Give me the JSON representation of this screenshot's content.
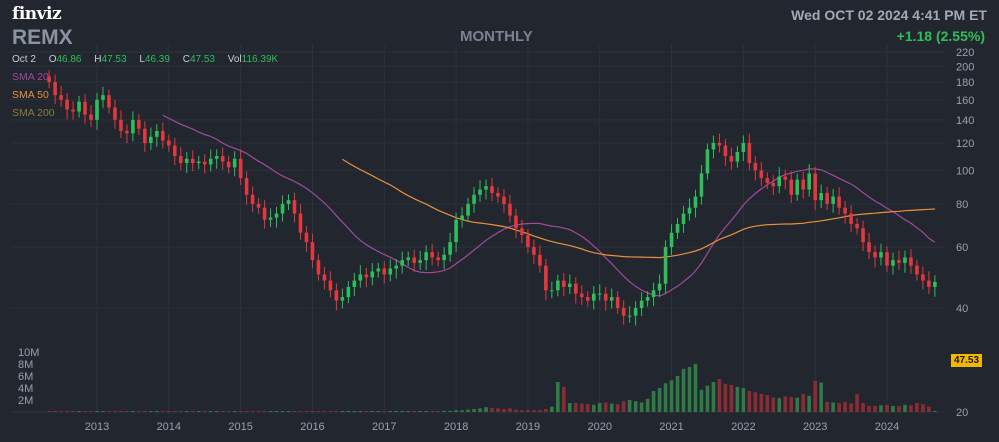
{
  "header": {
    "logo": "finviz",
    "ticker": "REMX",
    "timeframe": "MONTHLY",
    "datetime": "Wed OCT 02 2024 4:41 PM ET",
    "change": "+1.18 (2.55%)",
    "ohlc": {
      "date": "Oct 2",
      "open_label": "O",
      "open": "46.86",
      "high_label": "H",
      "high": "47.53",
      "low_label": "L",
      "low": "46.39",
      "close_label": "C",
      "close": "47.53",
      "vol_label": "Vol",
      "vol": "116.39K"
    },
    "sma": [
      {
        "label": "SMA",
        "period": "20",
        "color": "#a24a9a"
      },
      {
        "label": "SMA",
        "period": "50",
        "color": "#e8913a"
      },
      {
        "label": "SMA",
        "period": "200",
        "color": "#8a7a3a"
      }
    ],
    "last_price_tag": "47.53"
  },
  "colors": {
    "background": "#22262f",
    "up": "#2fbf5a",
    "down": "#e4373e",
    "volume_up": "#2f7a45",
    "volume_down": "#8b2c35"
  },
  "chart_data": {
    "type": "candlestick",
    "price_axis": {
      "ticks": [
        220,
        200,
        180,
        160,
        140,
        120,
        100,
        80,
        60,
        40,
        20
      ],
      "scale": "log"
    },
    "volume_axis": {
      "ticks": [
        "10M",
        "8M",
        "6M",
        "4M",
        "2M"
      ]
    },
    "x_axis": {
      "ticks": [
        "2013",
        "2014",
        "2015",
        "2016",
        "2017",
        "2018",
        "2019",
        "2020",
        "2021",
        "2022",
        "2023",
        "2024"
      ],
      "start": "2012-05",
      "end": "2024-10"
    },
    "closes": [
      180,
      165,
      160,
      150,
      148,
      158,
      145,
      140,
      160,
      165,
      152,
      140,
      130,
      128,
      140,
      132,
      120,
      125,
      130,
      122,
      118,
      110,
      105,
      108,
      105,
      106,
      104,
      108,
      110,
      106,
      102,
      108,
      95,
      85,
      80,
      78,
      72,
      73,
      75,
      80,
      82,
      75,
      66,
      62,
      55,
      50,
      48,
      45,
      42,
      43,
      46,
      48,
      50,
      49,
      51,
      52,
      50,
      52,
      53,
      55,
      56,
      54,
      55,
      58,
      56,
      55,
      57,
      62,
      72,
      74,
      80,
      85,
      88,
      90,
      86,
      84,
      80,
      74,
      68,
      65,
      60,
      57,
      53,
      45,
      45,
      48,
      46,
      47,
      44,
      43,
      42,
      44,
      44,
      42,
      43,
      40,
      38,
      38,
      40,
      42,
      43,
      45,
      47,
      60,
      66,
      70,
      75,
      78,
      84,
      98,
      115,
      120,
      118,
      110,
      106,
      113,
      120,
      105,
      100,
      95,
      92,
      90,
      96,
      94,
      85,
      94,
      88,
      98,
      82,
      86,
      80,
      84,
      78,
      75,
      70,
      68,
      62,
      58,
      56,
      58,
      53,
      55,
      54,
      56,
      53,
      50,
      48,
      46,
      47.53
    ],
    "volumes_m": [
      0.1,
      0.1,
      0.1,
      0.1,
      0.1,
      0.1,
      0.1,
      0.1,
      0.1,
      0.1,
      0.1,
      0.1,
      0.1,
      0.1,
      0.1,
      0.1,
      0.1,
      0.1,
      0.1,
      0.1,
      0.1,
      0.1,
      0.1,
      0.1,
      0.1,
      0.1,
      0.1,
      0.1,
      0.1,
      0.1,
      0.1,
      0.1,
      0.1,
      0.1,
      0.1,
      0.1,
      0.1,
      0.1,
      0.1,
      0.1,
      0.1,
      0.1,
      0.1,
      0.1,
      0.1,
      0.1,
      0.1,
      0.1,
      0.1,
      0.1,
      0.1,
      0.1,
      0.1,
      0.1,
      0.1,
      0.1,
      0.1,
      0.1,
      0.1,
      0.1,
      0.1,
      0.1,
      0.1,
      0.1,
      0.1,
      0.1,
      0.2,
      0.2,
      0.3,
      0.3,
      0.4,
      0.5,
      0.6,
      0.8,
      0.7,
      0.6,
      0.5,
      0.6,
      0.4,
      0.3,
      0.3,
      0.3,
      0.3,
      0.5,
      0.9,
      5.0,
      4.2,
      1.5,
      1.5,
      1.4,
      1.3,
      1.2,
      1.5,
      1.6,
      1.4,
      1.3,
      1.8,
      2.0,
      1.8,
      1.6,
      2.2,
      3.5,
      4.0,
      4.8,
      5.3,
      6.0,
      7.2,
      7.5,
      8.0,
      3.7,
      4.4,
      5.0,
      5.5,
      4.7,
      4.5,
      4.2,
      4.0,
      3.5,
      3.3,
      3.0,
      2.8,
      2.4,
      2.3,
      2.6,
      2.5,
      2.4,
      3.0,
      2.7,
      5.2,
      4.9,
      1.7,
      1.6,
      1.5,
      1.7,
      1.4,
      3.0,
      1.5,
      1.0,
      1.0,
      1.1,
      1.2,
      1.0,
      1.0,
      1.2,
      1.1,
      1.5,
      1.3,
      0.9,
      0.1
    ]
  }
}
